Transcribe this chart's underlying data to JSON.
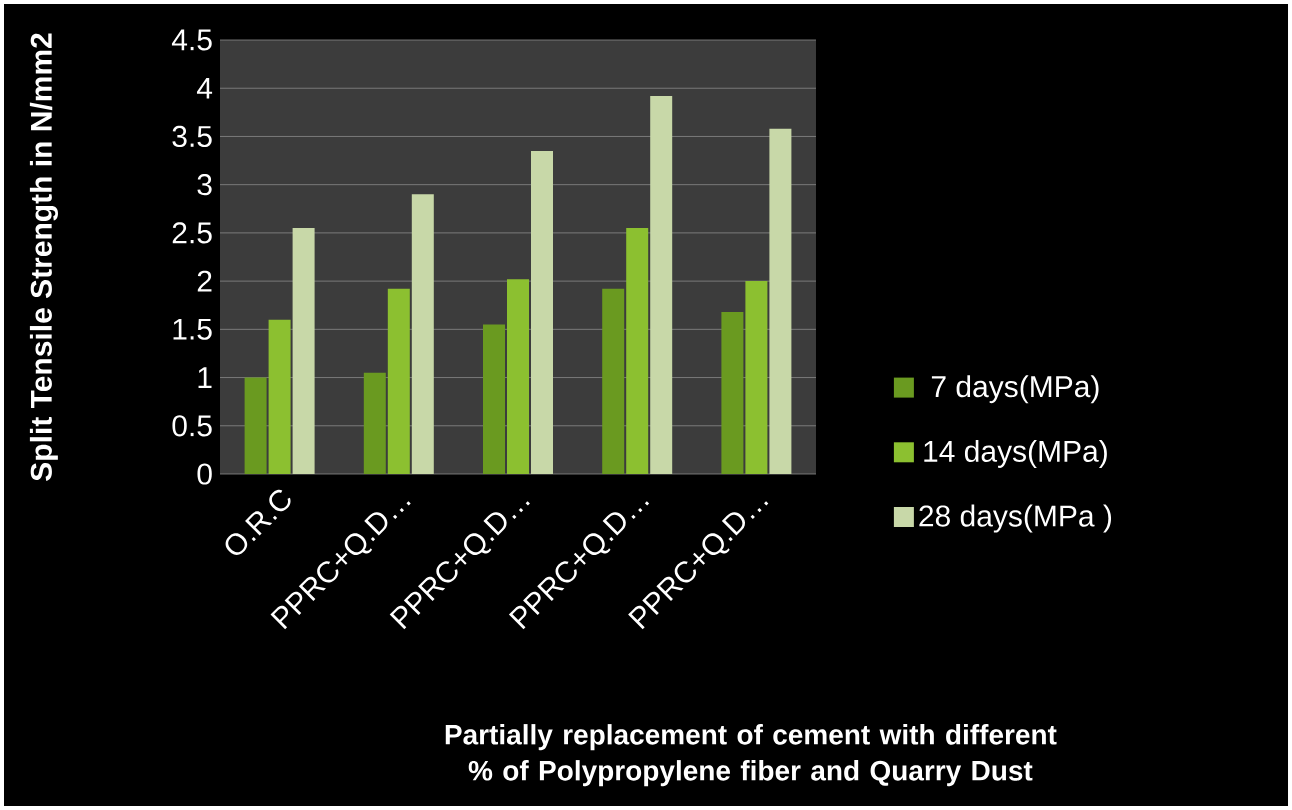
{
  "chart_data": {
    "type": "bar",
    "ylabel": "Split Tensile Strength in N/mm2",
    "xlabel": "Partially replacement of cement with different % of Polypropylene fiber and Quarry Dust",
    "categories": [
      "O.R.C",
      "PPRC+Q.D…",
      "PPRC+Q.D…",
      "PPRC+Q.D…",
      "PPRC+Q.D…"
    ],
    "series": [
      {
        "name": "7 days(MPa)",
        "color": "#6a9a20",
        "values": [
          1.0,
          1.05,
          1.55,
          1.92,
          1.68
        ]
      },
      {
        "name": "14 days(MPa)",
        "color": "#8cc030",
        "values": [
          1.6,
          1.92,
          2.02,
          2.55,
          2.0
        ]
      },
      {
        "name": "28 days(MPa )",
        "color": "#c8d8a8",
        "values": [
          2.55,
          2.9,
          3.35,
          3.92,
          3.58
        ]
      }
    ],
    "ylim": [
      0,
      4.5
    ],
    "yticks": [
      0,
      0.5,
      1,
      1.5,
      2,
      2.5,
      3,
      3.5,
      4,
      4.5
    ],
    "grid": "y",
    "legend": "right"
  }
}
